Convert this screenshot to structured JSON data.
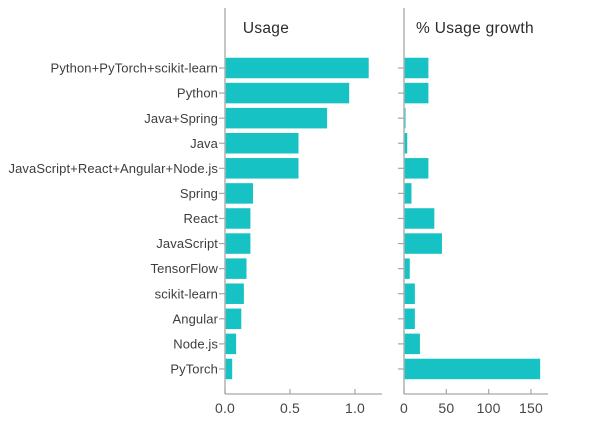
{
  "figure": {
    "background": "#ffffff",
    "bar_color": "#17c2c4",
    "axis_color": "#a6a6a6",
    "text_color": "#3d3d3d"
  },
  "chart_data": [
    {
      "type": "bar",
      "orientation": "horizontal",
      "title": "Usage",
      "categories": [
        "Python+PyTorch+scikit-learn",
        "Python",
        "Java+Spring",
        "Java",
        "JavaScript+React+Angular+Node.js",
        "Spring",
        "React",
        "JavaScript",
        "TensorFlow",
        "scikit-learn",
        "Angular",
        "Node.js",
        "PyTorch"
      ],
      "values": [
        1.1,
        0.95,
        0.78,
        0.56,
        0.56,
        0.21,
        0.19,
        0.19,
        0.16,
        0.14,
        0.12,
        0.08,
        0.05
      ],
      "x_ticks": [
        0.0,
        0.5,
        1.0
      ],
      "x_tick_labels": [
        "0.0",
        "0.5",
        "1.0"
      ],
      "xlim": [
        0,
        1.2
      ],
      "grid": false,
      "legend": null
    },
    {
      "type": "bar",
      "orientation": "horizontal",
      "title": "% Usage growth",
      "categories": [
        "Python+PyTorch+scikit-learn",
        "Python",
        "Java+Spring",
        "Java",
        "JavaScript+React+Angular+Node.js",
        "Spring",
        "React",
        "JavaScript",
        "TensorFlow",
        "scikit-learn",
        "Angular",
        "Node.js",
        "PyTorch"
      ],
      "values": [
        28,
        28,
        1,
        3,
        28,
        8,
        35,
        44,
        6,
        12,
        12,
        18,
        160
      ],
      "x_ticks": [
        0,
        50,
        100,
        150
      ],
      "x_tick_labels": [
        "0",
        "50",
        "100",
        "150"
      ],
      "xlim": [
        0,
        170
      ],
      "grid": false,
      "legend": null
    }
  ]
}
